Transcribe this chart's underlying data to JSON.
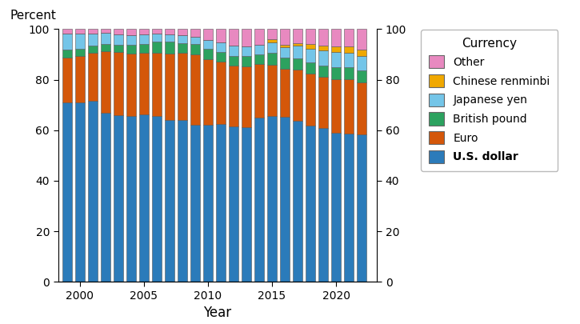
{
  "years": [
    1999,
    2000,
    2001,
    2002,
    2003,
    2004,
    2005,
    2006,
    2007,
    2008,
    2009,
    2010,
    2011,
    2012,
    2013,
    2014,
    2015,
    2016,
    2017,
    2018,
    2019,
    2020,
    2021,
    2022
  ],
  "usd": [
    71.0,
    71.1,
    71.5,
    67.0,
    65.8,
    65.5,
    66.4,
    65.7,
    64.1,
    64.1,
    62.1,
    62.2,
    62.6,
    61.5,
    61.2,
    65.1,
    65.7,
    65.3,
    63.8,
    61.9,
    60.9,
    59.0,
    58.8,
    58.4
  ],
  "euro": [
    17.9,
    18.3,
    19.2,
    24.2,
    25.3,
    24.9,
    24.1,
    25.1,
    26.3,
    26.4,
    27.8,
    26.0,
    24.7,
    24.0,
    24.2,
    21.2,
    20.2,
    19.1,
    20.2,
    20.6,
    20.2,
    21.2,
    21.3,
    20.5
  ],
  "gbp": [
    2.9,
    2.8,
    2.7,
    2.8,
    2.8,
    3.4,
    3.6,
    4.2,
    4.7,
    4.0,
    4.3,
    3.9,
    3.8,
    4.0,
    4.0,
    3.8,
    4.9,
    4.4,
    4.5,
    4.4,
    4.6,
    4.7,
    4.8,
    4.9
  ],
  "jpy": [
    6.4,
    6.1,
    4.7,
    4.5,
    4.1,
    3.9,
    3.7,
    3.2,
    2.9,
    3.1,
    2.9,
    3.7,
    3.6,
    4.1,
    3.8,
    3.8,
    4.0,
    4.0,
    4.9,
    5.2,
    6.0,
    6.0,
    5.6,
    5.5
  ],
  "cny": [
    0.0,
    0.0,
    0.0,
    0.0,
    0.0,
    0.0,
    0.0,
    0.0,
    0.0,
    0.0,
    0.0,
    0.0,
    0.0,
    0.0,
    0.0,
    0.0,
    1.1,
    1.1,
    1.2,
    1.9,
    1.9,
    2.3,
    2.8,
    2.7
  ],
  "other": [
    1.8,
    1.7,
    1.9,
    1.5,
    2.0,
    2.3,
    2.2,
    1.8,
    2.0,
    2.4,
    2.9,
    4.2,
    5.3,
    6.4,
    6.8,
    6.1,
    4.1,
    6.1,
    5.4,
    6.0,
    6.4,
    6.8,
    6.7,
    8.0
  ],
  "colors": {
    "usd": "#2b7bba",
    "euro": "#d4570a",
    "gbp": "#2ca25f",
    "jpy": "#74c5e8",
    "cny": "#f0a800",
    "other": "#e889c0"
  },
  "title_left": "Percent",
  "xlabel": "Year",
  "ylim": [
    0,
    100
  ],
  "yticks": [
    0,
    20,
    40,
    60,
    80,
    100
  ],
  "legend_title": "Currency",
  "legend_labels": [
    "Other",
    "Chinese renminbi",
    "Japanese yen",
    "British pound",
    "Euro",
    "U.S. dollar"
  ],
  "legend_bold": "U.S. dollar",
  "xticks": [
    2000,
    2005,
    2010,
    2015,
    2020
  ]
}
